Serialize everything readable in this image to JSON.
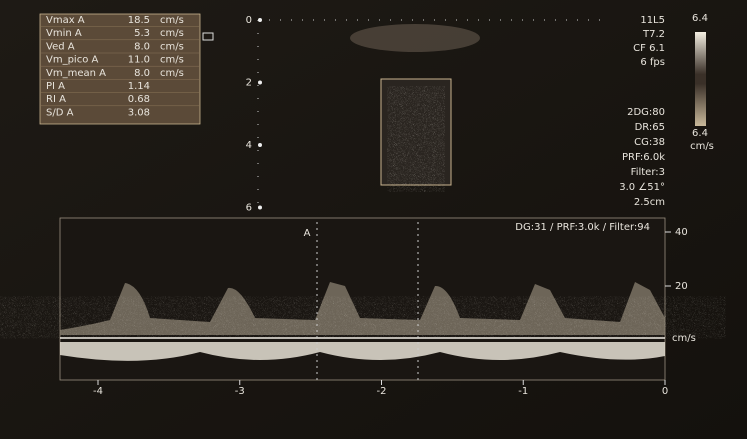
{
  "measurements": [
    {
      "label": "Vmax A",
      "value": "18.5",
      "unit": "cm/s"
    },
    {
      "label": "Vmin A",
      "value": "5.3",
      "unit": "cm/s"
    },
    {
      "label": "Ved A",
      "value": "8.0",
      "unit": "cm/s"
    },
    {
      "label": "Vm_pico A",
      "value": "11.0",
      "unit": "cm/s"
    },
    {
      "label": "Vm_mean A",
      "value": "8.0",
      "unit": "cm/s"
    },
    {
      "label": "PI A",
      "value": "1.14"
    },
    {
      "label": "RI A",
      "value": "0.68"
    },
    {
      "label": "S/D A",
      "value": "3.08"
    }
  ],
  "depth_scale": [
    "0",
    "2",
    "4",
    "6"
  ],
  "probe_info": [
    "11L5",
    "T7.2",
    "CF 6.1",
    "6 fps"
  ],
  "color_scale": {
    "top": "6.4",
    "bottom": "6.4",
    "unit": "cm/s"
  },
  "settings": [
    "2DG:80",
    "DR:65",
    "CG:38",
    "PRF:6.0k",
    "Filter:3",
    "3.0 ∠51°",
    "2.5cm"
  ],
  "doppler": {
    "cursor_label": "A",
    "header": "DG:31 /  PRF:3.0k  / Filter:94",
    "velocity_ticks": [
      "40",
      "20"
    ],
    "velocity_unit": "cm/s",
    "time_ticks": [
      "-4",
      "-3",
      "-2",
      "-1",
      "0"
    ]
  }
}
